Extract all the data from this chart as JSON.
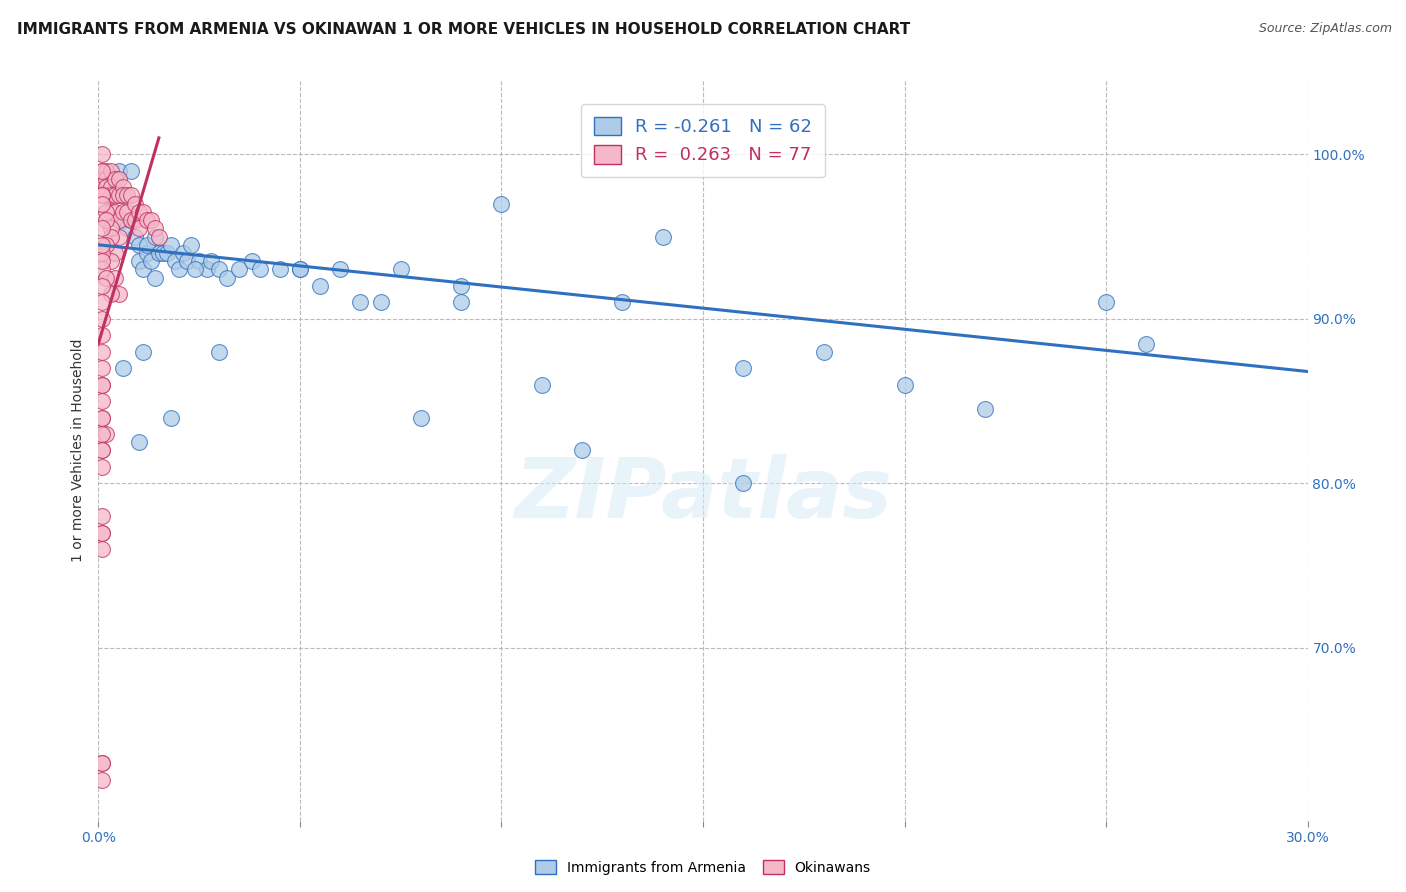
{
  "title": "IMMIGRANTS FROM ARMENIA VS OKINAWAN 1 OR MORE VEHICLES IN HOUSEHOLD CORRELATION CHART",
  "source": "Source: ZipAtlas.com",
  "ylabel": "1 or more Vehicles in Household",
  "ytick_labels": [
    "100.0%",
    "90.0%",
    "80.0%",
    "70.0%"
  ],
  "ytick_values": [
    1.0,
    0.9,
    0.8,
    0.7
  ],
  "xlim": [
    0.0,
    0.3
  ],
  "ylim": [
    0.595,
    1.045
  ],
  "legend_blue_r": "-0.261",
  "legend_blue_n": "62",
  "legend_pink_r": "0.263",
  "legend_pink_n": "77",
  "blue_color": "#aecce8",
  "pink_color": "#f5b8c8",
  "blue_line_color": "#3070c0",
  "pink_line_color": "#c03060",
  "watermark": "ZIPatlas",
  "blue_scatter_x": [
    0.004,
    0.005,
    0.006,
    0.007,
    0.008,
    0.009,
    0.01,
    0.01,
    0.011,
    0.012,
    0.012,
    0.013,
    0.014,
    0.015,
    0.016,
    0.017,
    0.018,
    0.019,
    0.02,
    0.021,
    0.022,
    0.023,
    0.025,
    0.027,
    0.028,
    0.03,
    0.032,
    0.035,
    0.038,
    0.04,
    0.045,
    0.05,
    0.055,
    0.06,
    0.065,
    0.07,
    0.075,
    0.08,
    0.09,
    0.1,
    0.11,
    0.12,
    0.14,
    0.16,
    0.18,
    0.2,
    0.22,
    0.25,
    0.005,
    0.008,
    0.011,
    0.014,
    0.018,
    0.024,
    0.03,
    0.26,
    0.006,
    0.01,
    0.05,
    0.09,
    0.13,
    0.16
  ],
  "blue_scatter_y": [
    0.985,
    0.975,
    0.96,
    0.955,
    0.96,
    0.95,
    0.945,
    0.935,
    0.93,
    0.94,
    0.945,
    0.935,
    0.925,
    0.94,
    0.94,
    0.94,
    0.945,
    0.935,
    0.93,
    0.94,
    0.935,
    0.945,
    0.935,
    0.93,
    0.935,
    0.93,
    0.925,
    0.93,
    0.935,
    0.93,
    0.93,
    0.93,
    0.92,
    0.93,
    0.91,
    0.91,
    0.93,
    0.84,
    0.91,
    0.97,
    0.86,
    0.82,
    0.95,
    0.87,
    0.88,
    0.86,
    0.845,
    0.91,
    0.99,
    0.99,
    0.88,
    0.95,
    0.84,
    0.93,
    0.88,
    0.885,
    0.87,
    0.825,
    0.93,
    0.92,
    0.91,
    0.8
  ],
  "pink_scatter_x": [
    0.001,
    0.001,
    0.001,
    0.002,
    0.002,
    0.002,
    0.002,
    0.003,
    0.003,
    0.003,
    0.003,
    0.004,
    0.004,
    0.004,
    0.005,
    0.005,
    0.005,
    0.005,
    0.006,
    0.006,
    0.006,
    0.007,
    0.007,
    0.008,
    0.008,
    0.009,
    0.009,
    0.01,
    0.01,
    0.011,
    0.012,
    0.013,
    0.014,
    0.015,
    0.001,
    0.002,
    0.003,
    0.001,
    0.002,
    0.003,
    0.004,
    0.001,
    0.002,
    0.003,
    0.004,
    0.005,
    0.001,
    0.001,
    0.002,
    0.003,
    0.001,
    0.001,
    0.002,
    0.001,
    0.001,
    0.001,
    0.001,
    0.001,
    0.001,
    0.001,
    0.001,
    0.001,
    0.001,
    0.001,
    0.001,
    0.001,
    0.001,
    0.001,
    0.001,
    0.001,
    0.001,
    0.001,
    0.001,
    0.001,
    0.001,
    0.001,
    0.001
  ],
  "pink_scatter_y": [
    1.0,
    0.99,
    0.985,
    0.99,
    0.985,
    0.98,
    0.975,
    0.99,
    0.98,
    0.975,
    0.965,
    0.985,
    0.975,
    0.965,
    0.985,
    0.975,
    0.96,
    0.95,
    0.98,
    0.975,
    0.965,
    0.975,
    0.965,
    0.975,
    0.96,
    0.97,
    0.96,
    0.965,
    0.955,
    0.965,
    0.96,
    0.96,
    0.955,
    0.95,
    0.975,
    0.965,
    0.955,
    0.975,
    0.96,
    0.95,
    0.94,
    0.955,
    0.945,
    0.935,
    0.925,
    0.915,
    0.94,
    0.93,
    0.925,
    0.915,
    0.86,
    0.84,
    0.83,
    0.82,
    0.81,
    0.78,
    0.77,
    0.99,
    0.97,
    0.945,
    0.935,
    0.92,
    0.91,
    0.9,
    0.89,
    0.88,
    0.87,
    0.86,
    0.85,
    0.84,
    0.83,
    0.82,
    0.77,
    0.76,
    0.63,
    0.63,
    0.62
  ],
  "blue_trend_x": [
    0.0,
    0.3
  ],
  "blue_trend_y": [
    0.945,
    0.868
  ],
  "pink_trend_x": [
    0.0,
    0.015
  ],
  "pink_trend_y": [
    0.885,
    1.01
  ],
  "grid_color": "#bbbbbb",
  "background_color": "#ffffff",
  "title_fontsize": 11,
  "axis_label_fontsize": 10,
  "tick_fontsize": 10,
  "legend_fontsize": 13,
  "source_fontsize": 9,
  "xtick_positions": [
    0.0,
    0.05,
    0.1,
    0.15,
    0.2,
    0.25,
    0.3
  ]
}
